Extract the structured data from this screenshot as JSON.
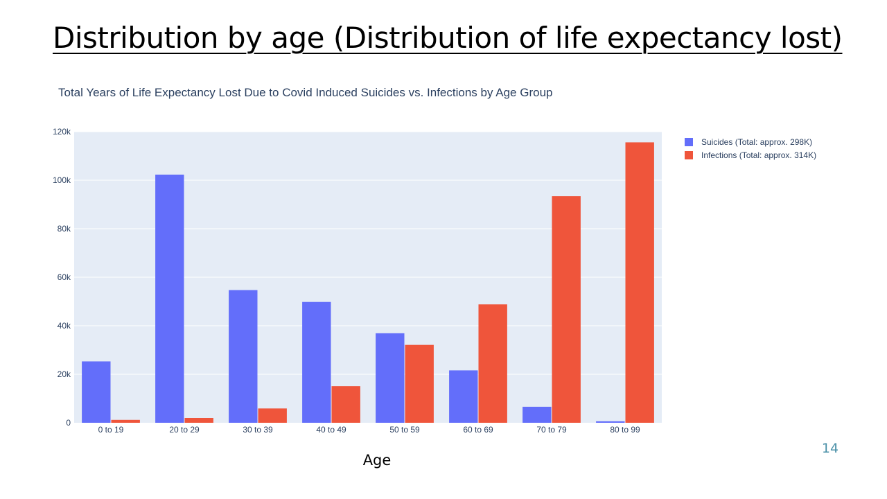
{
  "slide": {
    "title": "Distribution by age (Distribution of life expectancy lost)",
    "page_number": "14"
  },
  "colors": {
    "plot_background": "#e5ecf6",
    "gridline": "#ffffff",
    "suicides": "#636efa",
    "infections": "#ef553b"
  },
  "chart_data": {
    "type": "bar",
    "title": "Total Years of Life Expectancy Lost Due to Covid Induced Suicides vs. Infections by Age Group",
    "xlabel": "Age",
    "ylabel": "",
    "categories": [
      "0 to 19",
      "20 to 29",
      "30 to 39",
      "40 to 49",
      "50 to 59",
      "60 to 69",
      "70 to 79",
      "80 to 99"
    ],
    "ylim": [
      0,
      120000
    ],
    "yticks": [
      0,
      20000,
      40000,
      60000,
      80000,
      100000,
      120000
    ],
    "ytick_labels": [
      "0",
      "20k",
      "40k",
      "60k",
      "80k",
      "100k",
      "120k"
    ],
    "grid": true,
    "legend_position": "top-right",
    "series": [
      {
        "name": "Suicides (Total: approx. 298K)",
        "color": "#636efa",
        "values": [
          25300,
          102300,
          54700,
          49800,
          36900,
          21600,
          6600,
          600
        ]
      },
      {
        "name": "Infections (Total: approx. 314K)",
        "color": "#ef553b",
        "values": [
          1200,
          2000,
          5900,
          15100,
          32100,
          48800,
          93400,
          115600
        ]
      }
    ]
  }
}
